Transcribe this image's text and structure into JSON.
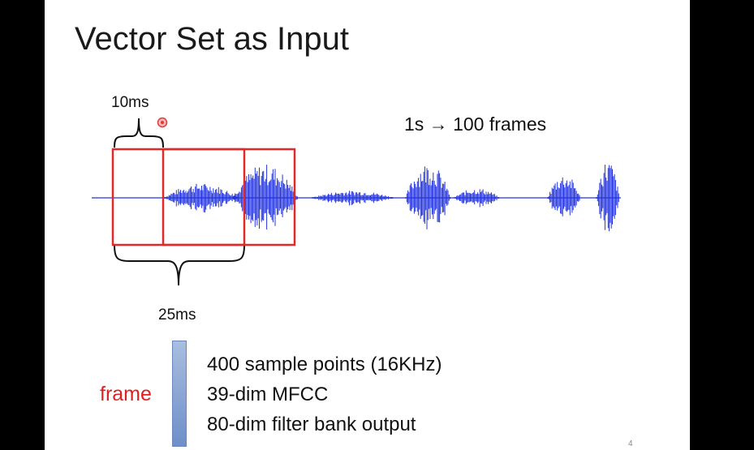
{
  "slide": {
    "title": "Vector Set as Input",
    "window_label": "10ms",
    "frame_length_label": "25ms",
    "rate_label": "1s → 100 frames",
    "frame_label": "frame",
    "frame_descriptions": [
      "400 sample points (16KHz)",
      "39-dim MFCC",
      "80-dim filter bank output"
    ],
    "page_number": "4"
  },
  "colors": {
    "waveform": "#2232e0",
    "frame_box": "#e02a2a",
    "frame_text": "#e02020",
    "vector_bar": "#7f9bd1",
    "pointer": "#e23b3b"
  }
}
